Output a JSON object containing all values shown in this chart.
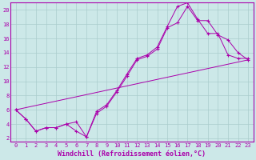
{
  "xlabel": "Windchill (Refroidissement éolien,°C)",
  "background_color": "#cce8e8",
  "grid_color": "#aacccc",
  "line_color": "#aa00aa",
  "xlim": [
    -0.5,
    23.5
  ],
  "ylim": [
    1.5,
    21.0
  ],
  "xticks": [
    0,
    1,
    2,
    3,
    4,
    5,
    6,
    7,
    8,
    9,
    10,
    11,
    12,
    13,
    14,
    15,
    16,
    17,
    18,
    19,
    20,
    21,
    22,
    23
  ],
  "yticks": [
    2,
    4,
    6,
    8,
    10,
    12,
    14,
    16,
    18,
    20
  ],
  "curve1_x": [
    0,
    1,
    2,
    3,
    4,
    5,
    6,
    7,
    8,
    9,
    10,
    11,
    12,
    13,
    14,
    15,
    16,
    17,
    18,
    19,
    20,
    21,
    22,
    23
  ],
  "curve1_y": [
    6.0,
    4.7,
    3.0,
    3.5,
    3.5,
    4.0,
    4.3,
    2.2,
    5.8,
    6.7,
    8.7,
    11.0,
    13.2,
    13.7,
    14.8,
    17.7,
    20.5,
    21.0,
    18.7,
    16.7,
    16.7,
    13.7,
    13.2,
    13.2
  ],
  "curve2_x": [
    0,
    1,
    2,
    3,
    4,
    5,
    6,
    7,
    8,
    9,
    10,
    11,
    12,
    13,
    14,
    15,
    16,
    17,
    18,
    19,
    20,
    21,
    22,
    23
  ],
  "curve2_y": [
    6.0,
    4.7,
    3.0,
    3.5,
    3.5,
    4.0,
    3.0,
    2.2,
    5.5,
    6.5,
    8.5,
    10.7,
    13.0,
    13.5,
    14.5,
    17.5,
    18.2,
    20.5,
    18.5,
    18.5,
    16.5,
    15.8,
    14.0,
    13.0
  ],
  "curve3_x": [
    0,
    23
  ],
  "curve3_y": [
    6.0,
    13.0
  ],
  "tick_fontsize": 5.0,
  "xlabel_fontsize": 6.0
}
